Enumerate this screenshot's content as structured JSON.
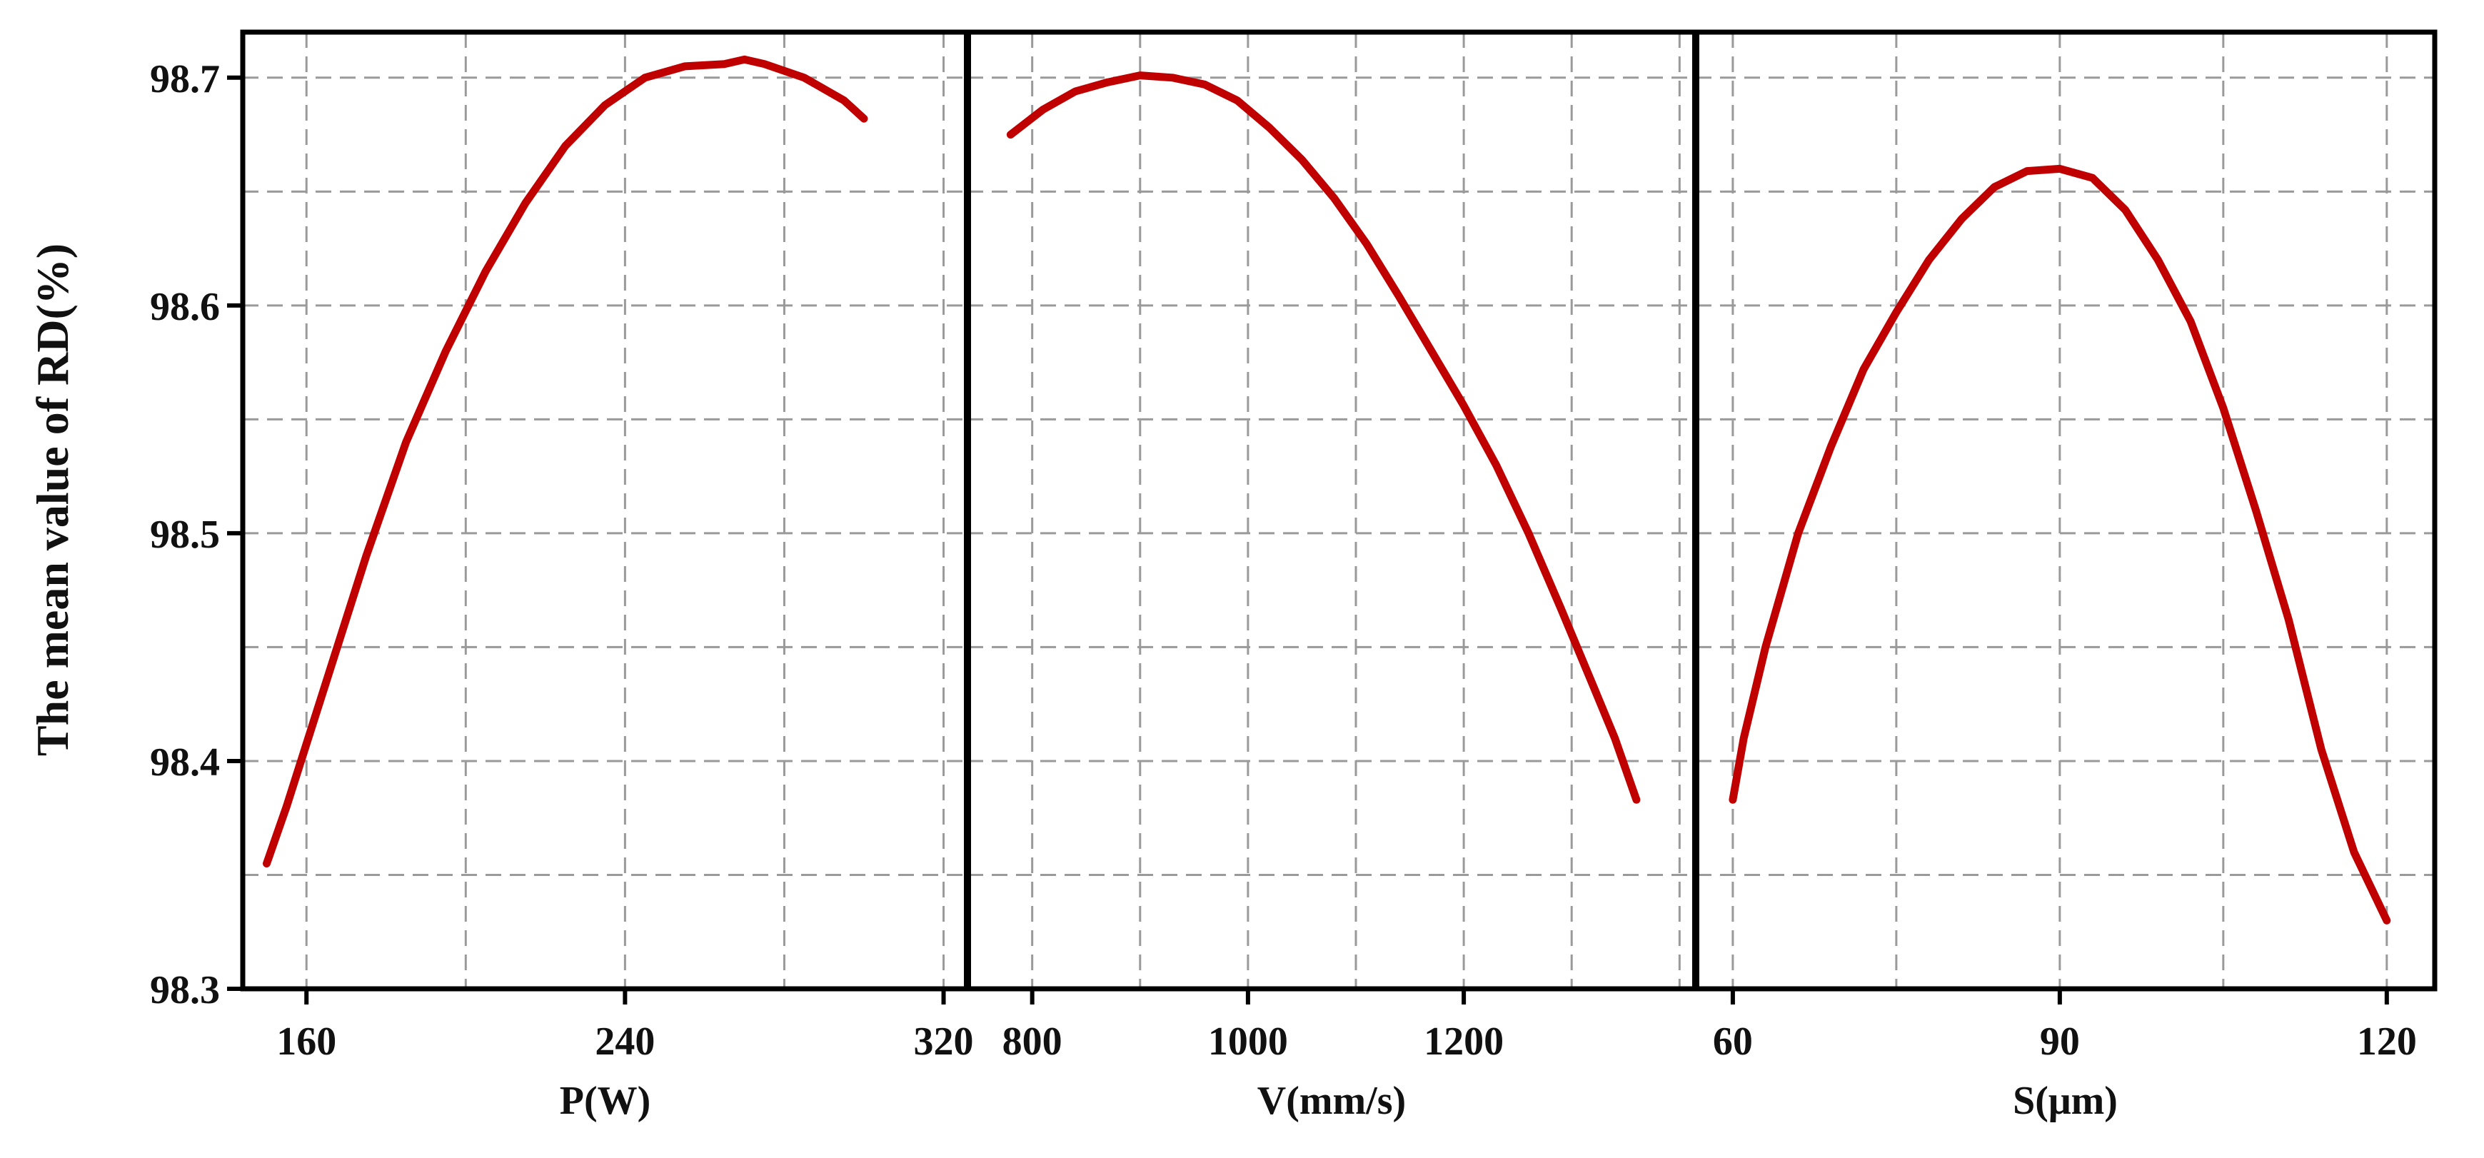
{
  "chart_data": {
    "type": "line",
    "ylabel": "The mean value of RD(%)",
    "ylim": [
      98.3,
      98.72
    ],
    "yticks": [
      98.3,
      98.4,
      98.5,
      98.6,
      98.7
    ],
    "ytick_labels": [
      "98.3",
      "98.4",
      "98.5",
      "98.6",
      "98.7"
    ],
    "grid": true,
    "line_color": "#c00000",
    "panels": [
      {
        "id": "p",
        "xlabel": "P(W)",
        "xlim": [
          144,
          326
        ],
        "xticks": [
          160,
          240,
          320
        ],
        "xtick_labels": [
          "160",
          "240",
          "320"
        ],
        "series": {
          "name": "P(W)",
          "x": [
            150,
            155,
            165,
            175,
            185,
            195,
            205,
            215,
            225,
            235,
            245,
            255,
            265,
            270,
            275,
            285,
            295,
            300
          ],
          "y": [
            98.355,
            98.38,
            98.435,
            98.49,
            98.54,
            98.58,
            98.615,
            98.645,
            98.67,
            98.688,
            98.7,
            98.705,
            98.706,
            98.708,
            98.706,
            98.7,
            98.69,
            98.682
          ]
        }
      },
      {
        "id": "v",
        "xlabel": "V(mm/s)",
        "xlim": [
          740,
          1415
        ],
        "xticks": [
          800,
          1000,
          1200
        ],
        "xtick_labels": [
          "800",
          "1000",
          "1200"
        ],
        "series": {
          "name": "V(mm/s)",
          "x": [
            780,
            810,
            840,
            870,
            900,
            930,
            960,
            990,
            1020,
            1050,
            1080,
            1110,
            1140,
            1170,
            1200,
            1230,
            1260,
            1290,
            1320,
            1340,
            1360
          ],
          "y": [
            98.675,
            98.686,
            98.694,
            98.698,
            98.701,
            98.7,
            98.697,
            98.69,
            98.678,
            98.664,
            98.647,
            98.627,
            98.604,
            98.58,
            98.556,
            98.53,
            98.5,
            98.467,
            98.433,
            98.41,
            98.383
          ]
        }
      },
      {
        "id": "s",
        "xlabel": "S(μm)",
        "xlim": [
          56.6,
          124.4
        ],
        "xticks": [
          60,
          90,
          120
        ],
        "xtick_labels": [
          "60",
          "90",
          "120"
        ],
        "series": {
          "name": "S(μm)",
          "x": [
            60,
            61,
            63,
            66,
            69,
            72,
            75,
            78,
            81,
            84,
            87,
            90,
            93,
            96,
            99,
            102,
            105,
            108,
            111,
            114,
            117,
            120
          ],
          "y": [
            98.383,
            98.41,
            98.45,
            98.5,
            98.538,
            98.572,
            98.597,
            98.62,
            98.638,
            98.652,
            98.659,
            98.66,
            98.656,
            98.642,
            98.62,
            98.593,
            98.555,
            98.51,
            98.462,
            98.405,
            98.36,
            98.33
          ]
        }
      }
    ]
  }
}
